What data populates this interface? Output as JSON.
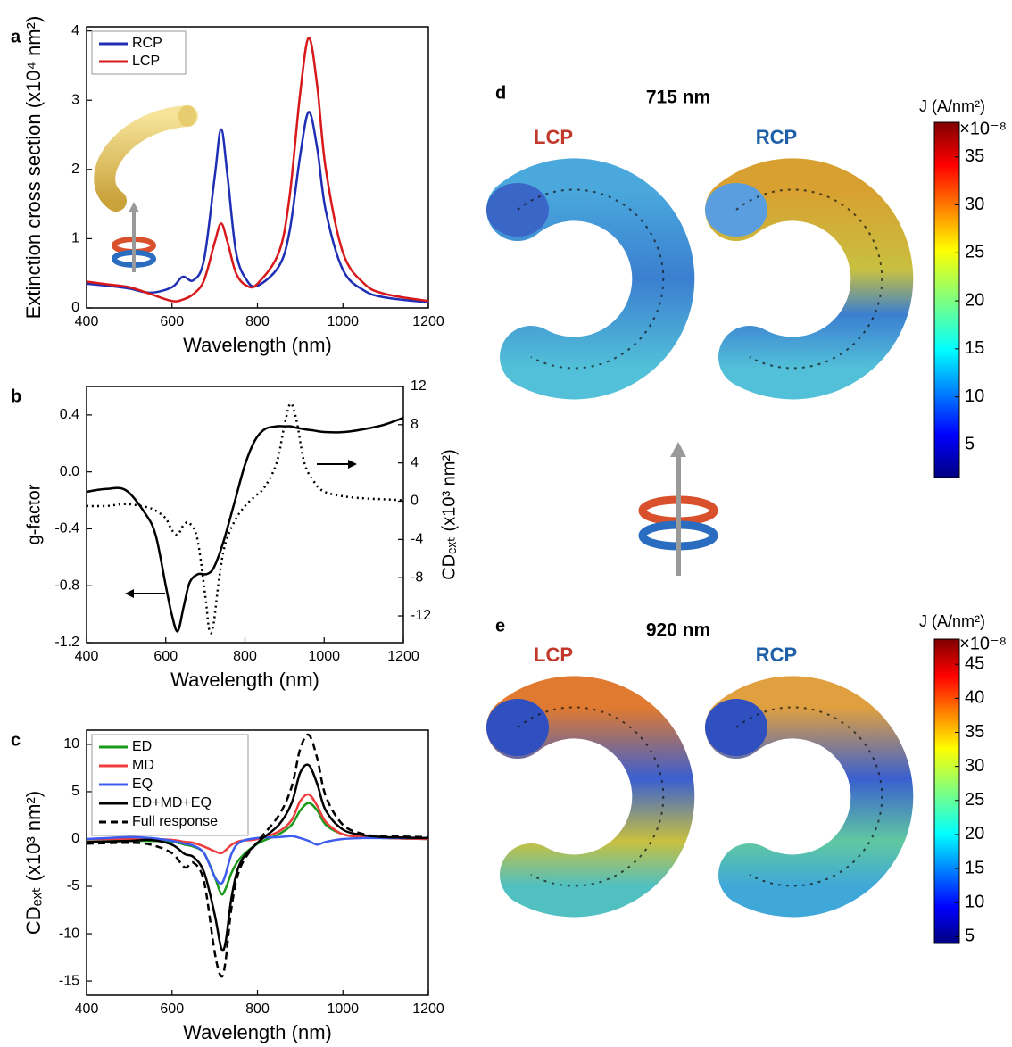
{
  "chart_data": [
    {
      "type": "line",
      "panel": "a",
      "xlabel": "Wavelength (nm)",
      "ylabel": "Extinction cross section (x10⁴ nm²)",
      "xlim": [
        400,
        1200
      ],
      "xticks": [
        400,
        600,
        800,
        1000,
        1200
      ],
      "ylim": [
        0,
        4.06
      ],
      "yticks": [
        0,
        1,
        2,
        3,
        4
      ],
      "legend": "upper left",
      "x": [
        400,
        450,
        500,
        550,
        600,
        625,
        650,
        675,
        700,
        715,
        730,
        750,
        775,
        800,
        850,
        875,
        900,
        920,
        940,
        960,
        1000,
        1050,
        1100,
        1200
      ],
      "series": [
        {
          "name": "RCP",
          "color": "#1f2fb5",
          "dash": "solid",
          "values": [
            0.35,
            0.32,
            0.28,
            0.22,
            0.3,
            0.45,
            0.4,
            0.7,
            1.9,
            2.58,
            1.9,
            0.8,
            0.4,
            0.32,
            0.6,
            1.1,
            2.2,
            2.83,
            2.3,
            1.4,
            0.55,
            0.25,
            0.15,
            0.08
          ]
        },
        {
          "name": "LCP",
          "color": "#d7191c",
          "dash": "solid",
          "values": [
            0.38,
            0.34,
            0.3,
            0.2,
            0.1,
            0.12,
            0.2,
            0.4,
            0.95,
            1.22,
            0.95,
            0.5,
            0.32,
            0.35,
            0.8,
            1.6,
            3.1,
            3.9,
            3.2,
            2.0,
            0.8,
            0.35,
            0.2,
            0.1
          ]
        }
      ]
    },
    {
      "type": "line",
      "panel": "b",
      "xlabel": "Wavelength (nm)",
      "ylabel": "g-factor",
      "y2label": "CDₑₓₜ (x10³ nm²)",
      "xlim": [
        400,
        1200
      ],
      "xticks": [
        400,
        600,
        800,
        1000,
        1200
      ],
      "ylim": [
        -1.2,
        0.6
      ],
      "yticks": [
        -1.2,
        -0.8,
        -0.4,
        {
          "value": 0,
          "label": "0.0"
        },
        0.4
      ],
      "y2lim": [
        -14.8,
        12
      ],
      "y2ticks": [
        -12,
        -8,
        -4,
        0,
        4,
        8,
        12
      ],
      "x": [
        400,
        450,
        500,
        550,
        575,
        600,
        615,
        630,
        645,
        660,
        680,
        700,
        710,
        720,
        735,
        750,
        775,
        800,
        825,
        850,
        880,
        900,
        915,
        930,
        950,
        975,
        1000,
        1050,
        1100,
        1150,
        1200
      ],
      "series": [
        {
          "color": "#000000",
          "dash": "solid",
          "values": [
            -0.14,
            -0.12,
            -0.13,
            -0.3,
            -0.45,
            -0.8,
            -1.0,
            -1.12,
            -0.95,
            -0.78,
            -0.72,
            -0.72,
            -0.71,
            -0.68,
            -0.58,
            -0.45,
            -0.2,
            0.05,
            0.22,
            0.3,
            0.32,
            0.32,
            0.32,
            0.31,
            0.3,
            0.29,
            0.28,
            0.28,
            0.3,
            0.33,
            0.38
          ]
        },
        {
          "color": "#000000",
          "dash": "dotted",
          "axis": "y2",
          "values": [
            -0.5,
            -0.5,
            -0.3,
            -0.6,
            -1.0,
            -1.8,
            -3.0,
            -3.5,
            -2.5,
            -2.3,
            -4,
            -10,
            -13.5,
            -13,
            -8,
            -4.5,
            -2,
            -0.5,
            0.5,
            1.5,
            4,
            8,
            10.2,
            8.5,
            4,
            2,
            1,
            0.5,
            0.3,
            0.2,
            0.1
          ]
        }
      ]
    },
    {
      "type": "line",
      "panel": "c",
      "xlabel": "Wavelength (nm)",
      "ylabel": "CDₑₓₜ (x10³ nm²)",
      "xlim": [
        400,
        1200
      ],
      "xticks": [
        400,
        600,
        800,
        1000,
        1200
      ],
      "ylim": [
        -16.5,
        11.5
      ],
      "yticks": [
        -15,
        -10,
        -5,
        0,
        5,
        10
      ],
      "legend": "upper left",
      "x": [
        400,
        500,
        550,
        600,
        630,
        650,
        675,
        700,
        715,
        725,
        740,
        760,
        800,
        850,
        880,
        900,
        920,
        940,
        960,
        1000,
        1050,
        1100,
        1200
      ],
      "series": [
        {
          "name": "ED",
          "color": "#1a9a1a",
          "dash": "solid",
          "values": [
            -0.3,
            -0.2,
            -0.2,
            -0.3,
            -0.6,
            -0.8,
            -1.5,
            -4,
            -5.8,
            -5.3,
            -3.5,
            -2,
            -0.5,
            0.5,
            1.5,
            3,
            3.8,
            3,
            1.5,
            0.5,
            0.2,
            0.1,
            0
          ]
        },
        {
          "name": "MD",
          "color": "#f03c3c",
          "dash": "solid",
          "values": [
            0,
            0,
            0,
            -0.1,
            -0.3,
            -0.4,
            -0.8,
            -1.3,
            -1.5,
            -1.2,
            -0.6,
            -0.2,
            0,
            0.8,
            2,
            4,
            4.7,
            3.5,
            1.8,
            0.5,
            0.2,
            0.1,
            0
          ]
        },
        {
          "name": "EQ",
          "color": "#3d5cf0",
          "dash": "solid",
          "values": [
            0,
            0.2,
            0.1,
            -0.2,
            -0.5,
            -0.7,
            -1.5,
            -4,
            -4.7,
            -3.8,
            -1.5,
            -0.3,
            0.1,
            0.2,
            0.3,
            0.1,
            -0.2,
            -0.6,
            -0.3,
            0,
            0.1,
            0.1,
            0.1
          ]
        },
        {
          "name": "ED+MD+EQ",
          "color": "#000000",
          "dash": "solid",
          "values": [
            -0.3,
            -0.2,
            -0.1,
            -0.6,
            -1.6,
            -1.9,
            -3.5,
            -8,
            -11.5,
            -11,
            -6,
            -2.5,
            -0.4,
            1.5,
            3.8,
            7,
            7.8,
            5.8,
            3,
            1,
            0.4,
            0.2,
            0.1
          ]
        },
        {
          "name": "Full response",
          "color": "#000000",
          "dash": "dashed",
          "values": [
            -0.5,
            -0.4,
            -0.6,
            -1.5,
            -3,
            -2.5,
            -4.5,
            -12,
            -14.5,
            -13,
            -7,
            -3,
            -0.3,
            2.5,
            5.5,
            9.5,
            11,
            8.5,
            4.5,
            1.5,
            0.5,
            0.3,
            0.2
          ]
        }
      ]
    },
    {
      "type": "colorbar",
      "panel": "d",
      "title": "715 nm",
      "labels": [
        "LCP",
        "RCP"
      ],
      "colorbar_label": "J (A/nm²)",
      "multiplier": "×10⁻⁸",
      "ylim": [
        1.6,
        38.6
      ],
      "yticks": [
        5,
        10,
        15,
        20,
        25,
        30,
        35
      ]
    },
    {
      "type": "colorbar",
      "panel": "e",
      "title": "920 nm",
      "labels": [
        "LCP",
        "RCP"
      ],
      "colorbar_label": "J (A/nm²)",
      "multiplier": "×10⁻⁸",
      "ylim": [
        4,
        48.7
      ],
      "yticks": [
        5,
        10,
        15,
        20,
        25,
        30,
        35,
        40,
        45
      ]
    }
  ]
}
